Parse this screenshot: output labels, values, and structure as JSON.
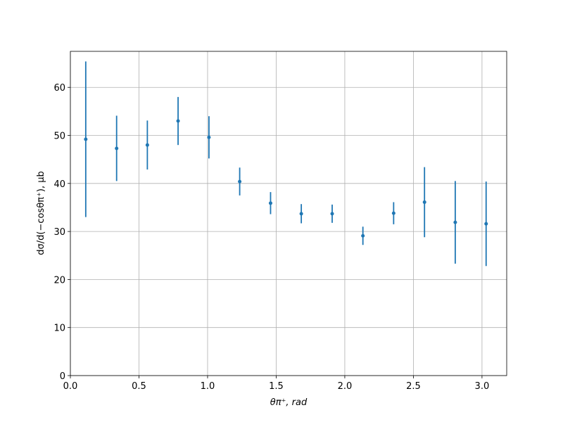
{
  "chart_data": {
    "type": "errorbar",
    "xlabel": "θπ⁺, rad",
    "ylabel": "dσ/d(−cosθπ⁺), μb",
    "x": [
      0.112,
      0.337,
      0.561,
      0.785,
      1.01,
      1.234,
      1.459,
      1.683,
      1.908,
      2.132,
      2.356,
      2.581,
      2.805,
      3.03
    ],
    "values": [
      49.2,
      47.3,
      48.0,
      53.0,
      49.6,
      40.4,
      35.9,
      33.7,
      33.7,
      29.1,
      33.8,
      36.1,
      31.9,
      31.6
    ],
    "errors": [
      16.2,
      6.8,
      5.1,
      5.0,
      4.4,
      2.9,
      2.3,
      2.0,
      1.9,
      1.9,
      2.3,
      7.3,
      8.6,
      8.8
    ],
    "color": "#1f77b4",
    "xlim": [
      0,
      3.18
    ],
    "ylim": [
      0,
      67.5
    ],
    "xticks": [
      {
        "value": 0,
        "label": "0.0"
      },
      0.5,
      {
        "value": 1,
        "label": "1.0"
      },
      1.5,
      {
        "value": 2,
        "label": "2.0"
      },
      2.5,
      {
        "value": 3,
        "label": "3.0"
      }
    ],
    "yticks": [
      0,
      10,
      20,
      30,
      40,
      50,
      60
    ],
    "grid": true
  }
}
